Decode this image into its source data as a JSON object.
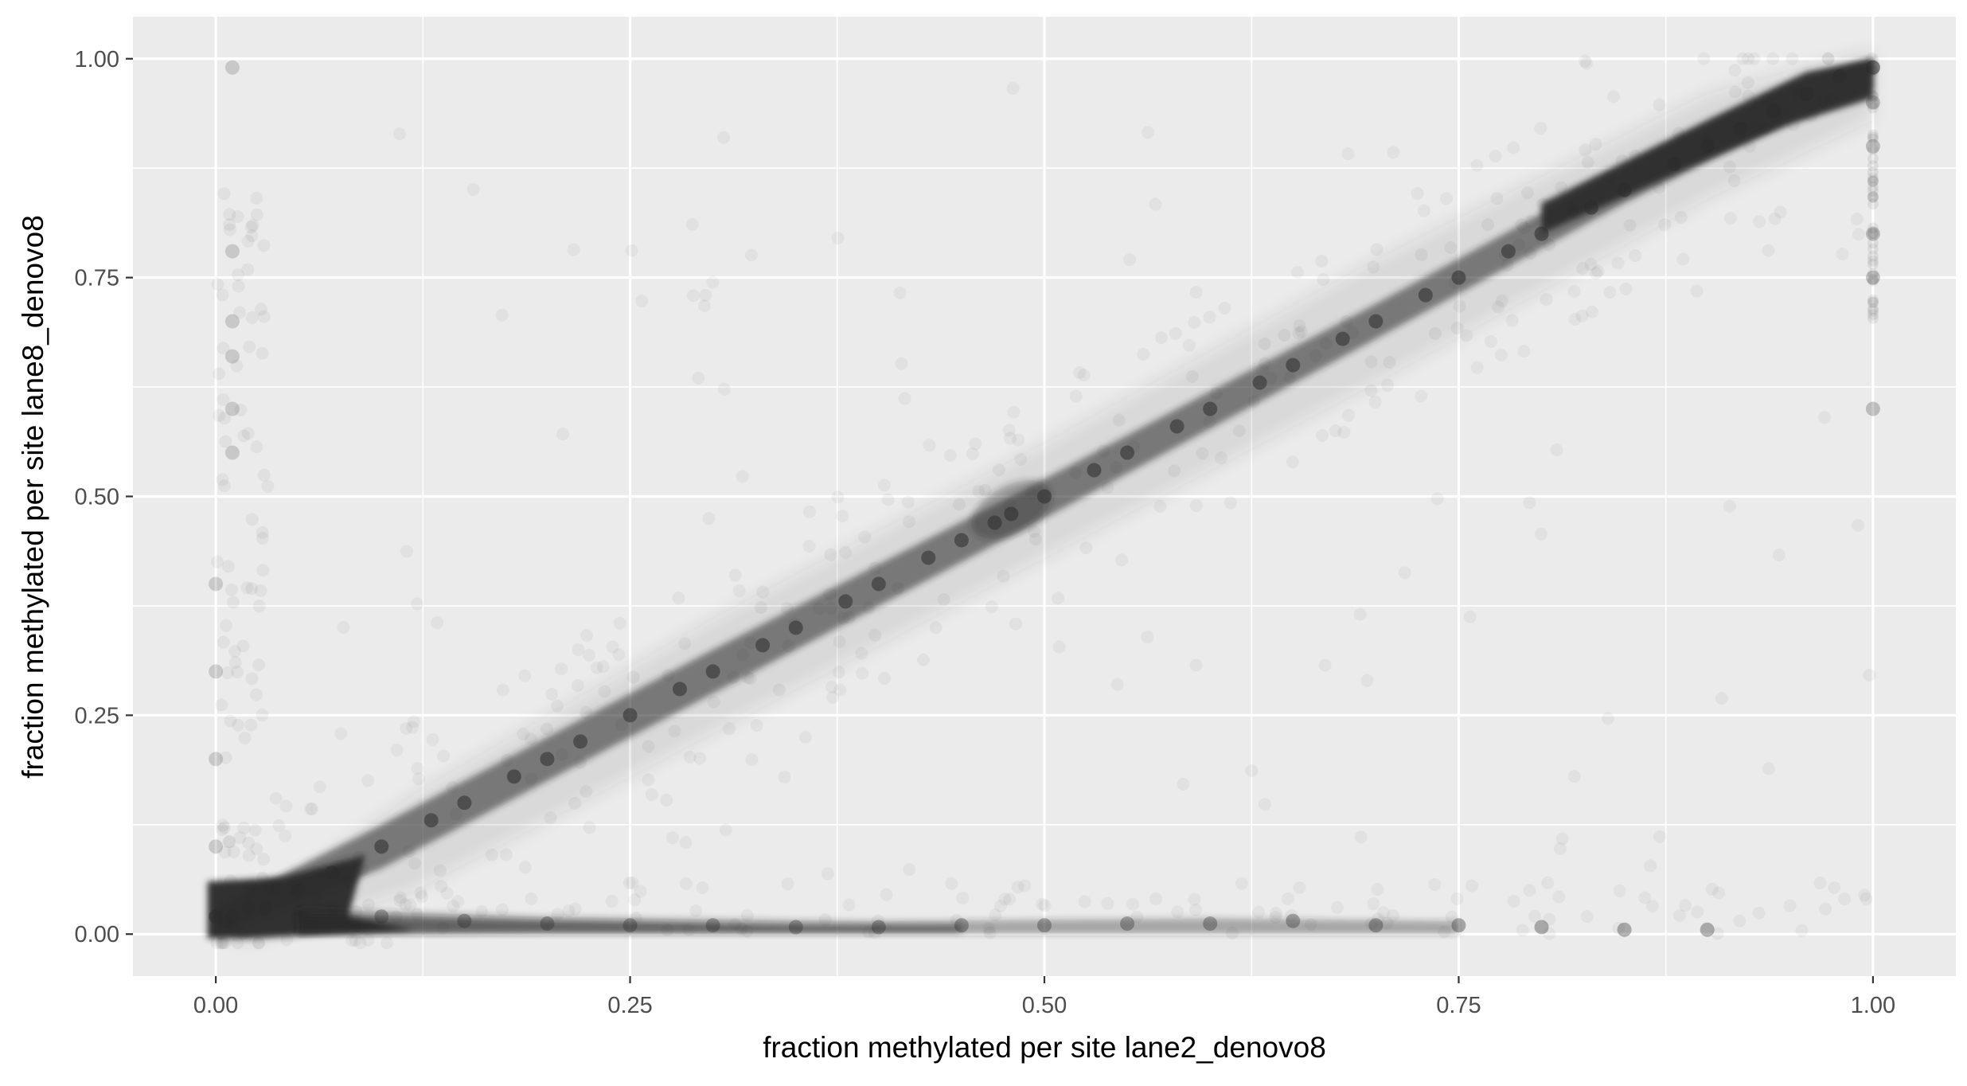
{
  "chart_data": {
    "type": "scatter",
    "title": "",
    "xlabel": "fraction methylated per site lane2_denovo8",
    "ylabel": "fraction methylated per site lane8_denovo8",
    "xlim": [
      -0.05,
      1.05
    ],
    "ylim": [
      -0.048,
      1.048
    ],
    "x_ticks": [
      0.0,
      0.25,
      0.5,
      0.75,
      1.0
    ],
    "y_ticks": [
      0.0,
      0.25,
      0.5,
      0.75,
      1.0
    ],
    "x_tick_labels": [
      "0.00",
      "0.25",
      "0.50",
      "0.75",
      "1.00"
    ],
    "y_tick_labels": [
      "0.00",
      "0.25",
      "0.50",
      "0.75",
      "1.00"
    ],
    "grid": true,
    "legend": "none",
    "point_color": "#2b2b2b",
    "panel_background": "#ebebeb",
    "gridline_color": "#ffffff",
    "series": [
      {
        "description_role": "main-diagonal-cluster",
        "points": [
          [
            0.0,
            0.02
          ],
          [
            0.01,
            0.02
          ],
          [
            0.02,
            0.03
          ],
          [
            0.03,
            0.03
          ],
          [
            0.05,
            0.05
          ],
          [
            0.07,
            0.07
          ],
          [
            0.1,
            0.1
          ],
          [
            0.13,
            0.13
          ],
          [
            0.15,
            0.15
          ],
          [
            0.18,
            0.18
          ],
          [
            0.2,
            0.2
          ],
          [
            0.22,
            0.22
          ],
          [
            0.25,
            0.25
          ],
          [
            0.28,
            0.28
          ],
          [
            0.3,
            0.3
          ],
          [
            0.33,
            0.33
          ],
          [
            0.35,
            0.35
          ],
          [
            0.38,
            0.38
          ],
          [
            0.4,
            0.4
          ],
          [
            0.43,
            0.43
          ],
          [
            0.45,
            0.45
          ],
          [
            0.47,
            0.47
          ],
          [
            0.48,
            0.48
          ],
          [
            0.5,
            0.5
          ],
          [
            0.53,
            0.53
          ],
          [
            0.55,
            0.55
          ],
          [
            0.58,
            0.58
          ],
          [
            0.6,
            0.6
          ],
          [
            0.63,
            0.63
          ],
          [
            0.65,
            0.65
          ],
          [
            0.68,
            0.68
          ],
          [
            0.7,
            0.7
          ],
          [
            0.73,
            0.73
          ],
          [
            0.75,
            0.75
          ],
          [
            0.78,
            0.78
          ],
          [
            0.8,
            0.8
          ],
          [
            0.83,
            0.83
          ],
          [
            0.85,
            0.85
          ],
          [
            0.88,
            0.88
          ],
          [
            0.9,
            0.9
          ],
          [
            0.92,
            0.92
          ],
          [
            0.94,
            0.94
          ],
          [
            0.96,
            0.96
          ],
          [
            0.98,
            0.98
          ],
          [
            1.0,
            0.99
          ]
        ]
      },
      {
        "description_role": "lower-band-near-zero",
        "points": [
          [
            0.05,
            0.02
          ],
          [
            0.1,
            0.02
          ],
          [
            0.15,
            0.015
          ],
          [
            0.2,
            0.012
          ],
          [
            0.25,
            0.01
          ],
          [
            0.3,
            0.01
          ],
          [
            0.35,
            0.008
          ],
          [
            0.4,
            0.008
          ],
          [
            0.45,
            0.01
          ],
          [
            0.5,
            0.01
          ],
          [
            0.55,
            0.012
          ],
          [
            0.6,
            0.012
          ],
          [
            0.65,
            0.015
          ],
          [
            0.7,
            0.01
          ],
          [
            0.75,
            0.01
          ],
          [
            0.8,
            0.008
          ],
          [
            0.85,
            0.005
          ],
          [
            0.9,
            0.005
          ]
        ]
      },
      {
        "description_role": "left-edge-column",
        "points": [
          [
            0.0,
            0.1
          ],
          [
            0.0,
            0.2
          ],
          [
            0.0,
            0.3
          ],
          [
            0.0,
            0.4
          ],
          [
            0.01,
            0.55
          ],
          [
            0.01,
            0.6
          ],
          [
            0.01,
            0.66
          ],
          [
            0.01,
            0.7
          ],
          [
            0.01,
            0.78
          ],
          [
            0.01,
            0.99
          ]
        ]
      },
      {
        "description_role": "right-edge-column",
        "points": [
          [
            1.0,
            0.6
          ],
          [
            1.0,
            0.75
          ],
          [
            1.0,
            0.8
          ],
          [
            1.0,
            0.9
          ],
          [
            1.0,
            0.95
          ]
        ]
      }
    ]
  }
}
